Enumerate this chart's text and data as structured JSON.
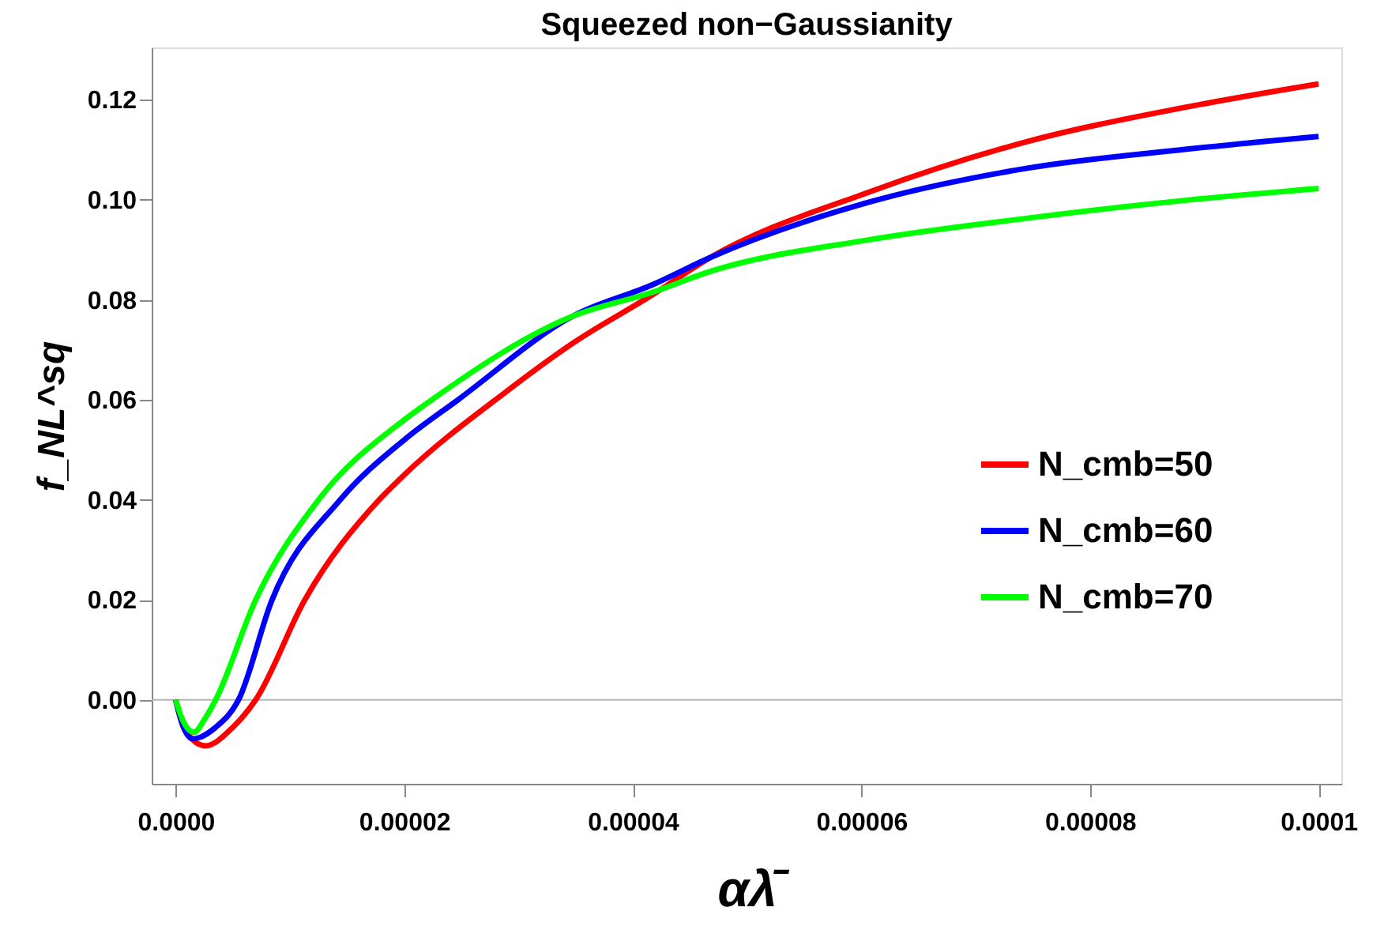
{
  "chart_data": {
    "type": "line",
    "title": "Squeezed non−Gaussianity",
    "xlabel": "αλ̄",
    "ylabel": "f_NL^sq",
    "xlim": [
      -2.1e-06,
      0.000102
    ],
    "ylim": [
      -0.0168,
      0.1305
    ],
    "xticks": [
      {
        "value": 0,
        "label": "0.0000"
      },
      {
        "value": 2e-05,
        "label": "0.00002"
      },
      {
        "value": 4e-05,
        "label": "0.00004"
      },
      {
        "value": 6e-05,
        "label": "0.00006"
      },
      {
        "value": 8e-05,
        "label": "0.00008"
      },
      {
        "value": 0.0001,
        "label": "0.0001"
      }
    ],
    "yticks": [
      {
        "value": 0,
        "label": "0.00"
      },
      {
        "value": 0.02,
        "label": "0.02"
      },
      {
        "value": 0.04,
        "label": "0.04"
      },
      {
        "value": 0.06,
        "label": "0.06"
      },
      {
        "value": 0.08,
        "label": "0.08"
      },
      {
        "value": 0.1,
        "label": "0.10"
      },
      {
        "value": 0.12,
        "label": "0.12"
      }
    ],
    "grid": false,
    "legend": "right",
    "marker": "none",
    "line_style": "solid",
    "ref_lines": [
      {
        "axis": "y",
        "value": 0,
        "color": "#b4b4b4"
      }
    ],
    "series": [
      {
        "name": "N_cmb=50",
        "color": "#ff0000",
        "x": [
          0,
          8e-07,
          2.6e-06,
          5e-06,
          7e-06,
          1.13e-05,
          1.78e-05,
          2e-05,
          2.89e-05,
          3.48e-05,
          4.17e-05,
          4.68e-05,
          6.06e-05,
          7.44e-05,
          8.83e-05,
          0.0001
        ],
        "values": [
          0,
          -0.006,
          -0.0092,
          -0.0055,
          0,
          0.02,
          0.04,
          0.045,
          0.0616,
          0.0714,
          0.081,
          0.0885,
          0.1015,
          0.1116,
          0.1185,
          0.1232
        ]
      },
      {
        "name": "N_cmb=60",
        "color": "#0000ff",
        "x": [
          0,
          6e-07,
          1.5e-06,
          3.5e-06,
          5.5e-06,
          8.4e-06,
          1.44e-05,
          2e-05,
          2.47e-05,
          3.48e-05,
          4.17e-05,
          4.68e-05,
          6.06e-05,
          7.44e-05,
          8.83e-05,
          0.0001
        ],
        "values": [
          0,
          -0.005,
          -0.0078,
          -0.0055,
          0,
          0.0198,
          0.04,
          0.052,
          0.06,
          0.0768,
          0.083,
          0.0885,
          0.0995,
          0.1063,
          0.1101,
          0.1127
        ]
      },
      {
        "name": "N_cmb=70",
        "color": "#00ff00",
        "x": [
          0,
          6e-07,
          1.6e-06,
          2.5e-06,
          3.5e-06,
          7e-06,
          1.25e-05,
          2e-05,
          2.24e-05,
          3.48e-05,
          4.17e-05,
          4.68e-05,
          6.06e-05,
          7.44e-05,
          8.83e-05,
          0.0001
        ],
        "values": [
          0,
          -0.004,
          -0.0065,
          -0.004,
          0,
          0.02,
          0.04,
          0.056,
          0.06,
          0.0768,
          0.0815,
          0.0857,
          0.092,
          0.0963,
          0.0999,
          0.1023
        ]
      }
    ]
  }
}
